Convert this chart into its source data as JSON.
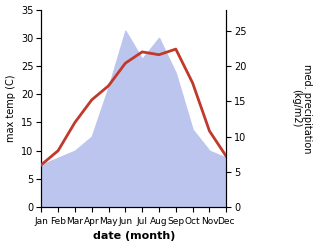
{
  "months": [
    "Jan",
    "Feb",
    "Mar",
    "Apr",
    "May",
    "Jun",
    "Jul",
    "Aug",
    "Sep",
    "Oct",
    "Nov",
    "Dec"
  ],
  "temperature": [
    7.5,
    10.0,
    15.0,
    19.0,
    21.5,
    25.5,
    27.5,
    27.0,
    28.0,
    22.0,
    13.5,
    9.0
  ],
  "precipitation": [
    6,
    7,
    8,
    10,
    17,
    25,
    21,
    24,
    19,
    11,
    8,
    7
  ],
  "temp_color": "#c0392b",
  "precip_fill_color": "#bcc5ee",
  "temp_ylim": [
    0,
    35
  ],
  "precip_ylim": [
    0,
    28
  ],
  "precip_yticks": [
    0,
    5,
    10,
    15,
    20,
    25
  ],
  "temp_yticks": [
    0,
    5,
    10,
    15,
    20,
    25,
    30,
    35
  ],
  "ylabel_left": "max temp (C)",
  "ylabel_right": "med. precipitation\n(kg/m2)",
  "xlabel": "date (month)",
  "bg_color": "#ffffff",
  "line_width": 2.0
}
